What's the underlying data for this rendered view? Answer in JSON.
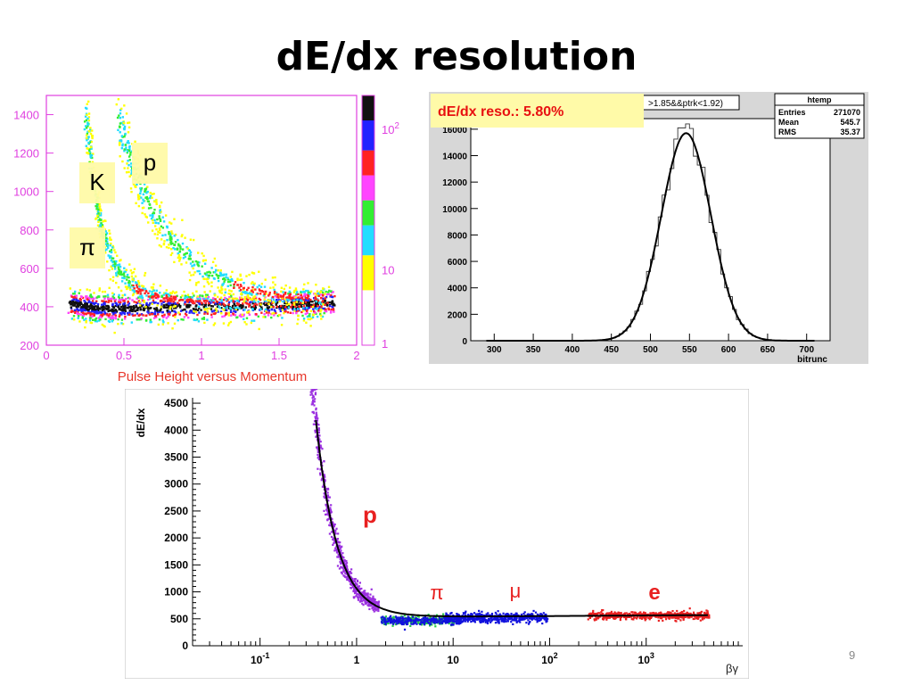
{
  "slide": {
    "title": "dE/dx resolution",
    "page_number": "9"
  },
  "colors": {
    "frame_magenta": "#e040e0",
    "xlabel_red": "#e8382c",
    "reso_box": "#fffaa8",
    "p_curve": "#9b30e0",
    "pi_green": "#22cc44",
    "mu_blue": "#1111dd",
    "e_red": "#e82020"
  },
  "chart_data": [
    {
      "type": "heatmap",
      "xlabel": "Pulse Height versus Momentum",
      "x_ticks": [
        "0",
        "0.5",
        "1",
        "1.5",
        "2"
      ],
      "y_ticks": [
        "200",
        "400",
        "600",
        "800",
        "1000",
        "1200",
        "1400"
      ],
      "xlim": [
        0,
        2
      ],
      "ylim": [
        200,
        1500
      ],
      "z_scale": "log",
      "z_ticks": [
        "1",
        "10",
        "10 2"
      ],
      "color_palette": [
        "#ffffff",
        "#ffff00",
        "#22ddff",
        "#33ee33",
        "#ff44ff",
        "#ff2222",
        "#2222ff",
        "#111111"
      ],
      "annotations": [
        "K",
        "p",
        "π"
      ],
      "bands": [
        {
          "name": "π",
          "points": [
            [
              0.15,
              420
            ],
            [
              0.3,
              400
            ],
            [
              0.5,
              395
            ],
            [
              0.8,
              400
            ],
            [
              1.2,
              405
            ],
            [
              1.6,
              415
            ],
            [
              1.85,
              430
            ]
          ]
        },
        {
          "name": "K",
          "points": [
            [
              0.25,
              1400
            ],
            [
              0.3,
              1050
            ],
            [
              0.35,
              800
            ],
            [
              0.45,
              600
            ],
            [
              0.6,
              480
            ],
            [
              0.9,
              430
            ],
            [
              1.3,
              415
            ],
            [
              1.8,
              420
            ]
          ]
        },
        {
          "name": "p",
          "points": [
            [
              0.45,
              1400
            ],
            [
              0.55,
              1150
            ],
            [
              0.65,
              950
            ],
            [
              0.8,
              750
            ],
            [
              1.0,
              600
            ],
            [
              1.2,
              520
            ],
            [
              1.45,
              470
            ],
            [
              1.8,
              445
            ]
          ]
        }
      ]
    },
    {
      "type": "bar",
      "reso_label": "dE/dx reso.: 5.80%",
      "cut_label": ">1.85&&ptrk<1.92)",
      "xlabel": "bitrunc",
      "stats": {
        "title": "htemp",
        "rows": [
          {
            "k": "Entries",
            "v": "271070"
          },
          {
            "k": "Mean",
            "v": "545.7"
          },
          {
            "k": "RMS",
            "v": "35.37"
          }
        ]
      },
      "x_ticks": [
        "300",
        "350",
        "400",
        "450",
        "500",
        "550",
        "600",
        "650",
        "700"
      ],
      "y_ticks": [
        "0",
        "2000",
        "4000",
        "6000",
        "8000",
        "10000",
        "12000",
        "14000",
        "16000"
      ],
      "xlim": [
        270,
        730
      ],
      "ylim": [
        0,
        16800
      ],
      "fit": {
        "mean": 545.7,
        "sigma": 31.7,
        "amplitude": 15700
      },
      "peak_values": [
        16100,
        16400
      ]
    },
    {
      "type": "scatter",
      "ylabel": "dE/dx",
      "xlabel": "βγ",
      "x_scale": "log",
      "x_ticks": [
        "10-1",
        "1",
        "10",
        "10 2",
        "10 3"
      ],
      "y_ticks": [
        "0",
        "500",
        "1000",
        "1500",
        "2000",
        "2500",
        "3000",
        "3500",
        "4000",
        "4500"
      ],
      "xlim": [
        0.02,
        10000
      ],
      "ylim": [
        0,
        4600
      ],
      "labels": [
        "p",
        "π",
        "μ",
        "e"
      ],
      "series": [
        {
          "name": "p",
          "x_range": [
            0.33,
            1.7
          ],
          "y_range": [
            4300,
            470
          ]
        },
        {
          "name": "π",
          "x_range": [
            1.8,
            12
          ],
          "y_mean": 470
        },
        {
          "name": "μ",
          "x_range": [
            8,
            95
          ],
          "y_mean": 520
        },
        {
          "name": "e",
          "x_range": [
            250,
            4500
          ],
          "y_mean": 560
        }
      ]
    }
  ]
}
